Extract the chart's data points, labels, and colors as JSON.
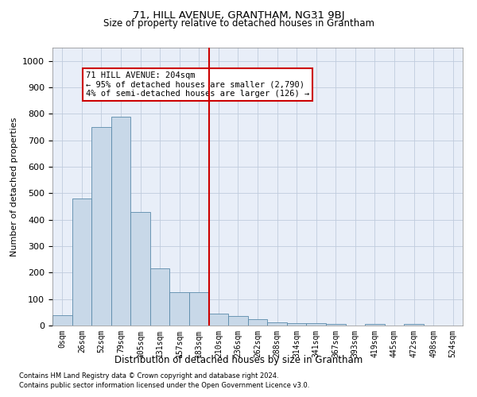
{
  "title": "71, HILL AVENUE, GRANTHAM, NG31 9BJ",
  "subtitle": "Size of property relative to detached houses in Grantham",
  "xlabel": "Distribution of detached houses by size in Grantham",
  "ylabel": "Number of detached properties",
  "bar_labels": [
    "0sqm",
    "26sqm",
    "52sqm",
    "79sqm",
    "105sqm",
    "131sqm",
    "157sqm",
    "183sqm",
    "210sqm",
    "236sqm",
    "262sqm",
    "288sqm",
    "314sqm",
    "341sqm",
    "367sqm",
    "393sqm",
    "419sqm",
    "445sqm",
    "472sqm",
    "498sqm",
    "524sqm"
  ],
  "bar_heights": [
    40,
    480,
    750,
    790,
    430,
    215,
    125,
    125,
    45,
    35,
    25,
    12,
    8,
    8,
    5,
    0,
    5,
    0,
    5,
    0,
    0
  ],
  "bar_color": "#c8d8e8",
  "bar_edge_color": "#5a8aaa",
  "grid_color": "#c0ccdd",
  "bg_color": "#e8eef8",
  "red_line_x": 8.0,
  "red_line_color": "#cc0000",
  "annotation_text": "71 HILL AVENUE: 204sqm\n← 95% of detached houses are smaller (2,790)\n4% of semi-detached houses are larger (126) →",
  "annotation_box_color": "#ffffff",
  "annotation_box_edge": "#cc0000",
  "ylim": [
    0,
    1050
  ],
  "yticks": [
    0,
    100,
    200,
    300,
    400,
    500,
    600,
    700,
    800,
    900,
    1000
  ],
  "footer1": "Contains HM Land Registry data © Crown copyright and database right 2024.",
  "footer2": "Contains public sector information licensed under the Open Government Licence v3.0."
}
